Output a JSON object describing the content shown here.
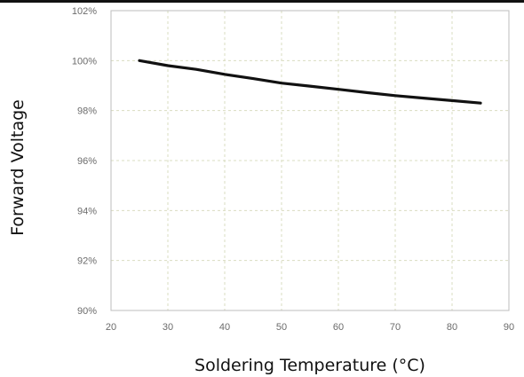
{
  "chart_data": {
    "type": "line",
    "title": "",
    "xlabel": "Soldering Temperature (°C)",
    "ylabel": "Forward Voltage",
    "xlim": [
      20,
      90
    ],
    "ylim": [
      90,
      102
    ],
    "x_ticks": [
      20,
      30,
      40,
      50,
      60,
      70,
      80,
      90
    ],
    "y_ticks": [
      90,
      92,
      94,
      96,
      98,
      100,
      102
    ],
    "y_tick_labels": [
      "90%",
      "92%",
      "94%",
      "96%",
      "98%",
      "100%",
      "102%"
    ],
    "grid": true,
    "line_color": "#111111",
    "grid_color": "#d9dcc0",
    "series": [
      {
        "x": [
          25,
          30,
          35,
          40,
          45,
          50,
          55,
          60,
          65,
          70,
          75,
          80,
          85
        ],
        "values": [
          100.0,
          99.8,
          99.65,
          99.45,
          99.28,
          99.1,
          98.98,
          98.85,
          98.72,
          98.6,
          98.5,
          98.4,
          98.3
        ]
      }
    ]
  }
}
